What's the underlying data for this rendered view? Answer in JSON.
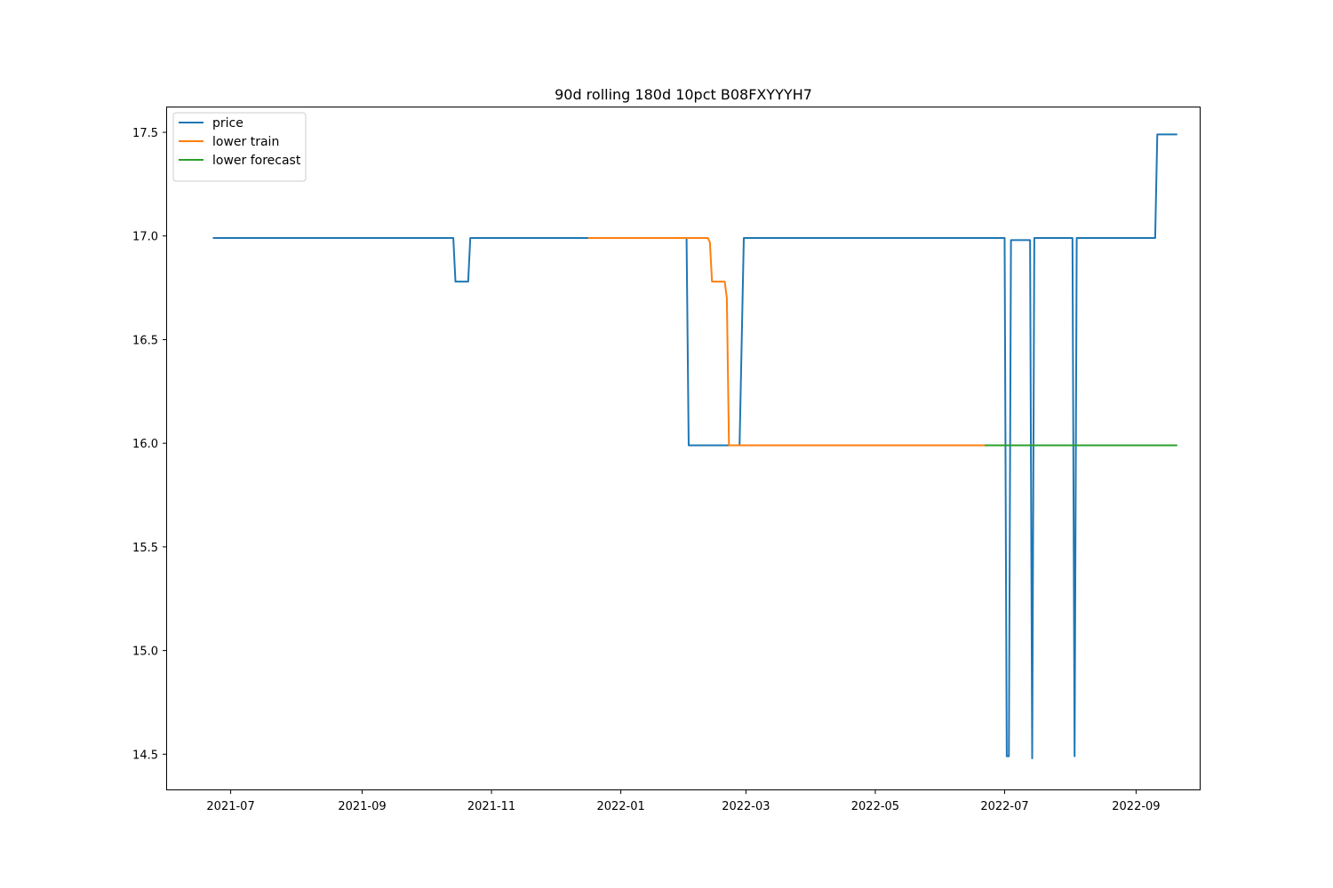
{
  "chart_data": {
    "type": "line",
    "title": "90d rolling 180d 10pct B08FXYYYH7",
    "xlabel": "",
    "ylabel": "",
    "x_axis": "date",
    "xlim": [
      "2021-06-01",
      "2022-10-01"
    ],
    "ylim": [
      14.33,
      17.62
    ],
    "x_ticks": [
      "2021-07-01",
      "2021-09-01",
      "2021-11-01",
      "2022-01-01",
      "2022-03-01",
      "2022-05-01",
      "2022-07-01",
      "2022-09-01"
    ],
    "x_tick_labels": [
      "2021-07",
      "2021-09",
      "2021-11",
      "2022-01",
      "2022-03",
      "2022-05",
      "2022-07",
      "2022-09"
    ],
    "y_ticks": [
      14.5,
      15.0,
      15.5,
      16.0,
      16.5,
      17.0,
      17.5
    ],
    "y_tick_labels": [
      "14.5",
      "15.0",
      "15.5",
      "16.0",
      "16.5",
      "17.0",
      "17.5"
    ],
    "grid": false,
    "legend_position": "top-left",
    "series": [
      {
        "name": "price",
        "color": "#1f77b4",
        "points": [
          [
            "2021-06-23",
            16.99
          ],
          [
            "2021-10-14",
            16.99
          ],
          [
            "2021-10-15",
            16.78
          ],
          [
            "2021-10-21",
            16.78
          ],
          [
            "2021-10-22",
            16.99
          ],
          [
            "2022-02-01",
            16.99
          ],
          [
            "2022-02-02",
            15.99
          ],
          [
            "2022-02-26",
            15.99
          ],
          [
            "2022-02-28",
            16.99
          ],
          [
            "2022-07-01",
            16.99
          ],
          [
            "2022-07-02",
            14.49
          ],
          [
            "2022-07-03",
            14.49
          ],
          [
            "2022-07-04",
            16.98
          ],
          [
            "2022-07-13",
            16.98
          ],
          [
            "2022-07-14",
            14.48
          ],
          [
            "2022-07-15",
            16.99
          ],
          [
            "2022-08-02",
            16.99
          ],
          [
            "2022-08-03",
            14.49
          ],
          [
            "2022-08-04",
            16.99
          ],
          [
            "2022-09-10",
            16.99
          ],
          [
            "2022-09-11",
            17.49
          ],
          [
            "2022-09-20",
            17.49
          ]
        ]
      },
      {
        "name": "lower train",
        "color": "#ff7f0e",
        "points": [
          [
            "2021-12-17",
            16.99
          ],
          [
            "2022-02-11",
            16.99
          ],
          [
            "2022-02-12",
            16.97
          ],
          [
            "2022-02-13",
            16.78
          ],
          [
            "2022-02-19",
            16.78
          ],
          [
            "2022-02-20",
            16.7
          ],
          [
            "2022-02-21",
            15.99
          ],
          [
            "2022-06-22",
            15.99
          ]
        ]
      },
      {
        "name": "lower forecast",
        "color": "#2ca02c",
        "points": [
          [
            "2022-06-22",
            15.99
          ],
          [
            "2022-09-20",
            15.99
          ]
        ]
      }
    ]
  }
}
